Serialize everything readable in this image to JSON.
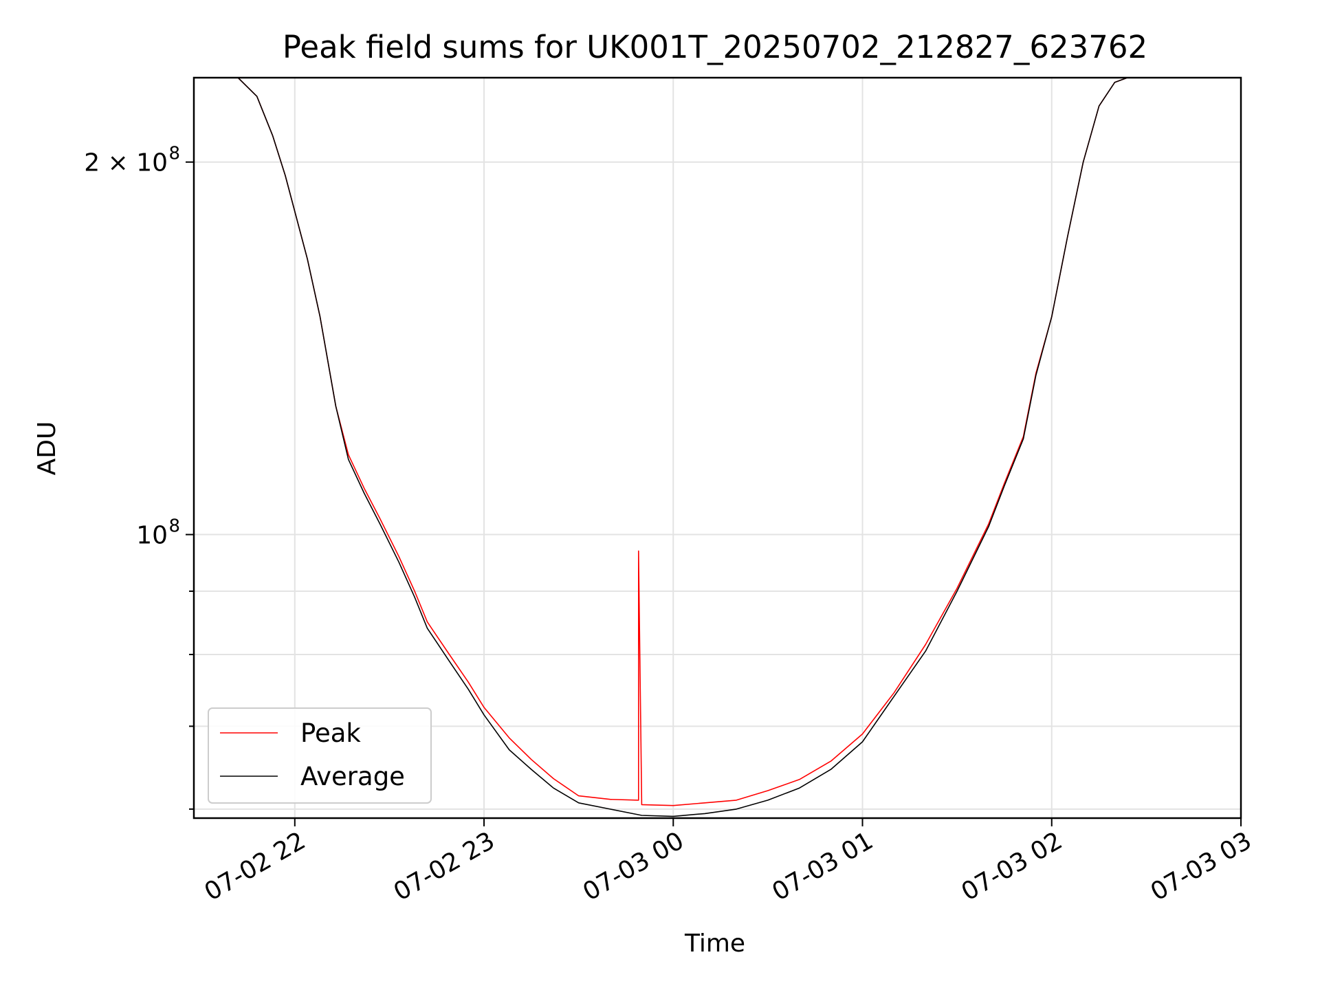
{
  "chart_data": {
    "type": "line",
    "title": "Peak field sums for UK001T_20250702_212827_623762",
    "xlabel": "Time",
    "ylabel": "ADU",
    "y_scale": "log",
    "grid": true,
    "legend_placement": "lower-left",
    "xlim": [
      "2025-07-02 21:28",
      "2025-07-03 03:00"
    ],
    "ylim": [
      59000000,
      234000000
    ],
    "x_ticks": [
      {
        "value": "2025-07-02 22:00",
        "label": "07-02 22"
      },
      {
        "value": "2025-07-02 23:00",
        "label": "07-02 23"
      },
      {
        "value": "2025-07-03 00:00",
        "label": "07-03 00"
      },
      {
        "value": "2025-07-03 01:00",
        "label": "07-03 01"
      },
      {
        "value": "2025-07-03 02:00",
        "label": "07-03 02"
      },
      {
        "value": "2025-07-03 03:00",
        "label": "07-03 03"
      }
    ],
    "y_major_ticks": [
      {
        "value": 100000000,
        "base": "10",
        "exp": "8"
      },
      {
        "value": 200000000,
        "base": "2 × 10",
        "exp": "8"
      }
    ],
    "y_minor_ticks": [
      60000000,
      70000000,
      80000000,
      90000000
    ],
    "series": [
      {
        "name": "Peak",
        "color": "#ff0000",
        "x": [
          "2025-07-02 21:28",
          "2025-07-02 21:42",
          "2025-07-02 21:48",
          "2025-07-02 21:53",
          "2025-07-02 21:57",
          "2025-07-02 22:04",
          "2025-07-02 22:08",
          "2025-07-02 22:13",
          "2025-07-02 22:17",
          "2025-07-02 22:22",
          "2025-07-02 22:27",
          "2025-07-02 22:33",
          "2025-07-02 22:38",
          "2025-07-02 22:42",
          "2025-07-02 22:49",
          "2025-07-02 22:55",
          "2025-07-02 23:00",
          "2025-07-02 23:08",
          "2025-07-02 23:15",
          "2025-07-02 23:22",
          "2025-07-02 23:30",
          "2025-07-02 23:40",
          "2025-07-02 23:49",
          "2025-07-02 23:49",
          "2025-07-02 23:50",
          "2025-07-03 00:00",
          "2025-07-03 00:10",
          "2025-07-03 00:20",
          "2025-07-03 00:30",
          "2025-07-03 00:40",
          "2025-07-03 00:50",
          "2025-07-03 01:00",
          "2025-07-03 01:10",
          "2025-07-03 01:20",
          "2025-07-03 01:30",
          "2025-07-03 01:40",
          "2025-07-03 01:45",
          "2025-07-03 01:51",
          "2025-07-03 01:55",
          "2025-07-03 02:00",
          "2025-07-03 02:05",
          "2025-07-03 02:10",
          "2025-07-03 02:15",
          "2025-07-03 02:20",
          "2025-07-03 02:24",
          "2025-07-03 03:00"
        ],
        "y": [
          234000000,
          234000000,
          226000000,
          210000000,
          195000000,
          167000000,
          150000000,
          127000000,
          116000000,
          109000000,
          103000000,
          96000000,
          90000000,
          85000000,
          80000000,
          76000000,
          72500000,
          68500000,
          65800000,
          63500000,
          61500000,
          61100000,
          61000000,
          97000000,
          60500000,
          60400000,
          60700000,
          61000000,
          62100000,
          63400000,
          65600000,
          69000000,
          74500000,
          81500000,
          90500000,
          102000000,
          110000000,
          120000000,
          135000000,
          150000000,
          174000000,
          200000000,
          222000000,
          232000000,
          234000000,
          234000000
        ]
      },
      {
        "name": "Average",
        "color": "#000000",
        "x": [
          "2025-07-02 21:28",
          "2025-07-02 21:42",
          "2025-07-02 21:48",
          "2025-07-02 21:53",
          "2025-07-02 21:57",
          "2025-07-02 22:04",
          "2025-07-02 22:08",
          "2025-07-02 22:13",
          "2025-07-02 22:17",
          "2025-07-02 22:22",
          "2025-07-02 22:27",
          "2025-07-02 22:33",
          "2025-07-02 22:38",
          "2025-07-02 22:42",
          "2025-07-02 22:49",
          "2025-07-02 22:55",
          "2025-07-02 23:00",
          "2025-07-02 23:08",
          "2025-07-02 23:15",
          "2025-07-02 23:22",
          "2025-07-02 23:30",
          "2025-07-02 23:40",
          "2025-07-02 23:50",
          "2025-07-03 00:00",
          "2025-07-03 00:10",
          "2025-07-03 00:20",
          "2025-07-03 00:30",
          "2025-07-03 00:40",
          "2025-07-03 00:50",
          "2025-07-03 01:00",
          "2025-07-03 01:10",
          "2025-07-03 01:20",
          "2025-07-03 01:30",
          "2025-07-03 01:40",
          "2025-07-03 01:45",
          "2025-07-03 01:51",
          "2025-07-03 01:55",
          "2025-07-03 02:00",
          "2025-07-03 02:05",
          "2025-07-03 02:10",
          "2025-07-03 02:15",
          "2025-07-03 02:20",
          "2025-07-03 02:24",
          "2025-07-03 03:00"
        ],
        "y": [
          234000000,
          234000000,
          226000000,
          210000000,
          195000000,
          167000000,
          150000000,
          127000000,
          115000000,
          108000000,
          102000000,
          95000000,
          89000000,
          84000000,
          79000000,
          75000000,
          71500000,
          67000000,
          64600000,
          62400000,
          60700000,
          60000000,
          59300000,
          59200000,
          59500000,
          60000000,
          61000000,
          62400000,
          64600000,
          68000000,
          74000000,
          80500000,
          90000000,
          101500000,
          109500000,
          119500000,
          134500000,
          150000000,
          174000000,
          200000000,
          222000000,
          232000000,
          234000000,
          234000000
        ]
      }
    ]
  }
}
